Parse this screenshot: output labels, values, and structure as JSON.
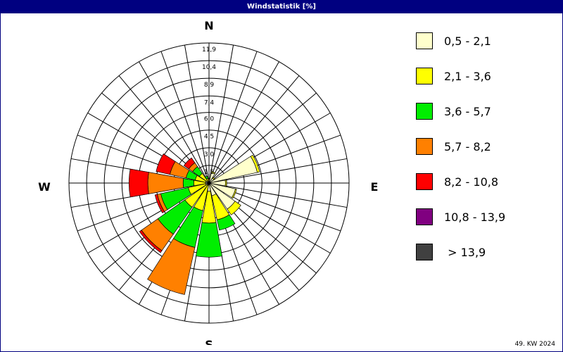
{
  "window": {
    "title": "Windstatistik [%]",
    "footer": "49. KW 2024"
  },
  "chart_data": {
    "type": "wind-rose",
    "title": "Windstatistik [%]",
    "unit": "%",
    "directions": [
      "N",
      "NNE",
      "NE",
      "ENE",
      "E",
      "ESE",
      "SE",
      "SSE",
      "S",
      "SSW",
      "SW",
      "WSW",
      "W",
      "WNW",
      "NW",
      "NNW"
    ],
    "compass_labels": {
      "north": "N",
      "east": "E",
      "south": "S",
      "west": "W"
    },
    "radial_axis": {
      "max": 11.9,
      "tick_values": [
        1.5,
        3.0,
        4.5,
        6.0,
        7.4,
        8.9,
        10.4,
        11.9
      ],
      "tick_labels": [
        "1,5",
        "3,0",
        "4,5",
        "6,0",
        "7,4",
        "8,9",
        "10,4",
        "11,9"
      ]
    },
    "series": [
      {
        "name": "0,5 - 2,1",
        "color": "#ffffcc",
        "values": [
          0.2,
          0.9,
          0.5,
          4.2,
          1.4,
          2.3,
          2.7,
          1.1,
          0.7,
          0.2,
          0.2,
          0.3,
          0.3,
          0.3,
          0.2,
          0.1
        ]
      },
      {
        "name": "2,1 - 3,6",
        "color": "#ffff00",
        "values": [
          0.1,
          0.1,
          0.1,
          0.2,
          0.1,
          0.1,
          0.6,
          2.1,
          2.7,
          2.2,
          2.3,
          1.5,
          1.0,
          0.9,
          0.8,
          0.3
        ]
      },
      {
        "name": "3,6 - 5,7",
        "color": "#00ee00",
        "values": [
          0.0,
          0.0,
          0.0,
          0.0,
          0.0,
          0.0,
          0.0,
          0.9,
          2.9,
          3.2,
          2.8,
          2.4,
          0.9,
          0.8,
          0.7,
          0.2
        ]
      },
      {
        "name": "5,7 - 8,2",
        "color": "#ff8000",
        "values": [
          0.0,
          0.0,
          0.0,
          0.0,
          0.0,
          0.0,
          0.0,
          0.0,
          0.0,
          4.1,
          1.7,
          0.3,
          3.0,
          1.4,
          0.4,
          0.0
        ]
      },
      {
        "name": "8,2 - 10,8",
        "color": "#ff0000",
        "values": [
          0.0,
          0.0,
          0.0,
          0.0,
          0.0,
          0.0,
          0.0,
          0.0,
          0.0,
          0.0,
          0.2,
          0.2,
          1.6,
          1.2,
          0.5,
          0.0
        ]
      },
      {
        "name": "10,8 - 13,9",
        "color": "#800080",
        "values": [
          0,
          0,
          0,
          0,
          0,
          0,
          0,
          0,
          0,
          0,
          0,
          0,
          0,
          0,
          0,
          0
        ]
      },
      {
        "name": " > 13,9",
        "color": "#404040",
        "values": [
          0,
          0,
          0,
          0,
          0,
          0,
          0,
          0,
          0,
          0,
          0,
          0,
          0,
          0,
          0,
          0
        ]
      }
    ],
    "legend_position": "right",
    "grid": true
  }
}
